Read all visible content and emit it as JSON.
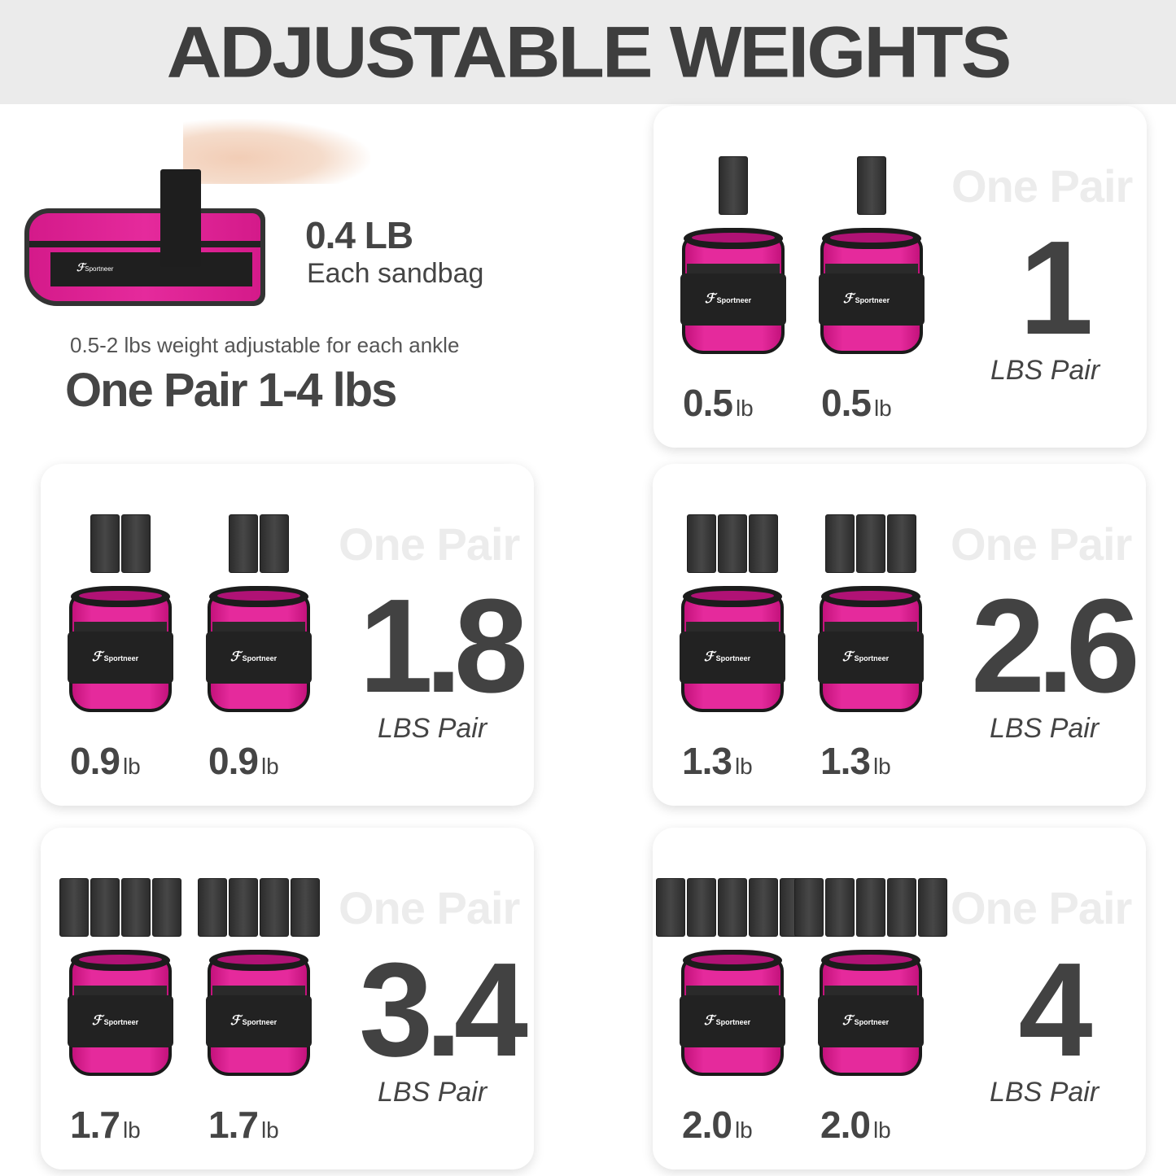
{
  "header": {
    "title": "ADJUSTABLE WEIGHTS"
  },
  "intro": {
    "sandbag_weight": "0.4 LB",
    "sandbag_caption": "Each sandbag",
    "subtitle": "0.5-2 lbs weight adjustable for each ankle",
    "headline": "One Pair 1-4 lbs",
    "brand": "Sportneer"
  },
  "colors": {
    "accent_pink": "#e52a9c",
    "text_dark": "#424242",
    "header_bg": "#ebebeb"
  },
  "cards": [
    {
      "one_pair": "One Pair",
      "total": "1",
      "total_unit": "LBS Pair",
      "sandbags_per_weight": 1,
      "each": [
        {
          "value": "0.5",
          "unit": "lb"
        },
        {
          "value": "0.5",
          "unit": "lb"
        }
      ]
    },
    {
      "one_pair": "One Pair",
      "total": "1.8",
      "total_unit": "LBS Pair",
      "sandbags_per_weight": 2,
      "each": [
        {
          "value": "0.9",
          "unit": "lb"
        },
        {
          "value": "0.9",
          "unit": "lb"
        }
      ]
    },
    {
      "one_pair": "One Pair",
      "total": "2.6",
      "total_unit": "LBS Pair",
      "sandbags_per_weight": 3,
      "each": [
        {
          "value": "1.3",
          "unit": "lb"
        },
        {
          "value": "1.3",
          "unit": "lb"
        }
      ]
    },
    {
      "one_pair": "One Pair",
      "total": "3.4",
      "total_unit": "LBS Pair",
      "sandbags_per_weight": 4,
      "each": [
        {
          "value": "1.7",
          "unit": "lb"
        },
        {
          "value": "1.7",
          "unit": "lb"
        }
      ]
    },
    {
      "one_pair": "One Pair",
      "total": "4",
      "total_unit": "LBS Pair",
      "sandbags_per_weight": 5,
      "each": [
        {
          "value": "2.0",
          "unit": "lb"
        },
        {
          "value": "2.0",
          "unit": "lb"
        }
      ]
    }
  ]
}
